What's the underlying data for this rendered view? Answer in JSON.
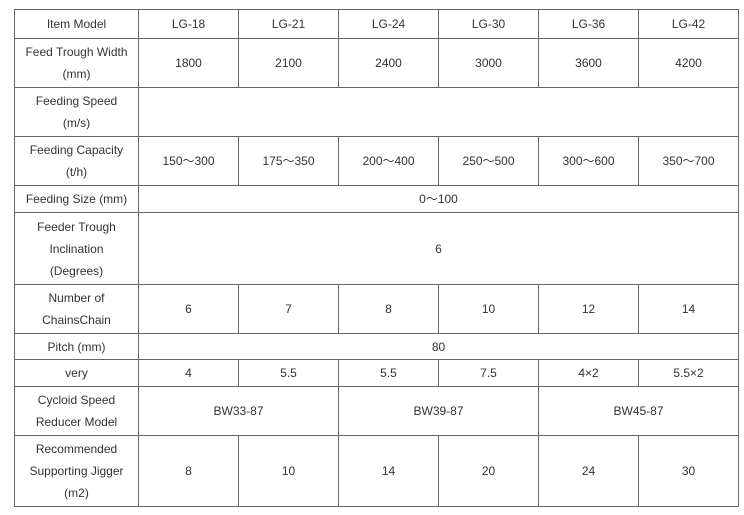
{
  "header": {
    "label": "Item  Model",
    "models": [
      "LG-18",
      "LG-21",
      "LG-24",
      "LG-30",
      "LG-36",
      "LG-42"
    ]
  },
  "rows": {
    "width": {
      "label": [
        "Feed Trough Width",
        "(mm)"
      ],
      "values": [
        "1800",
        "2100",
        "2400",
        "3000",
        "3600",
        "4200"
      ]
    },
    "speed": {
      "label": [
        "Feeding Speed",
        "(m/s)"
      ],
      "value": ""
    },
    "capacity": {
      "label": [
        "Feeding Capacity",
        "(t/h)"
      ],
      "values": [
        "150～300",
        "175～350",
        "200～400",
        "250～500",
        "300～600",
        "350～700"
      ]
    },
    "size": {
      "label": "Feeding Size (mm)",
      "value": "0～100"
    },
    "inclination": {
      "label": [
        "Feeder Trough",
        "Inclination",
        "(Degrees)"
      ],
      "value": "6"
    },
    "chains": {
      "label": [
        "Number of",
        "ChainsChain"
      ],
      "values": [
        "6",
        "7",
        "8",
        "10",
        "12",
        "14"
      ]
    },
    "pitch": {
      "label": "Pitch (mm)",
      "value": "80"
    },
    "very": {
      "label": "very",
      "values": [
        "4",
        "5.5",
        "5.5",
        "7.5",
        "4×2",
        "5.5×2"
      ]
    },
    "reducer": {
      "label": [
        "Cycloid Speed",
        "Reducer Model"
      ],
      "values": [
        "BW33-87",
        "BW39-87",
        "BW45-87"
      ]
    },
    "jigger": {
      "label": [
        "Recommended",
        "Supporting Jigger",
        "(m2)"
      ],
      "values": [
        "8",
        "10",
        "14",
        "20",
        "24",
        "30"
      ]
    }
  }
}
